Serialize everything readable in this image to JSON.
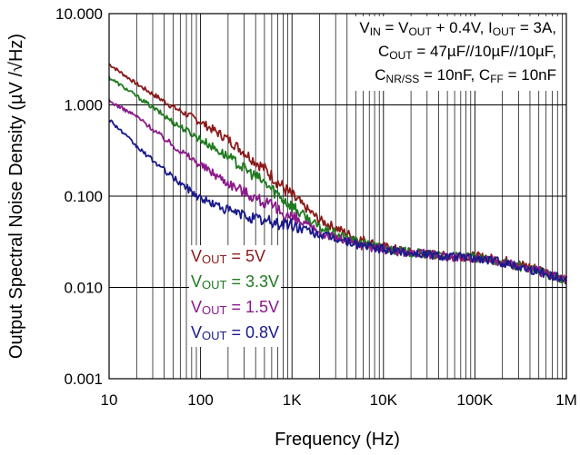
{
  "chart_data": {
    "type": "line",
    "ylabel": "Output Spectral Noise Density (µV /√Hz)",
    "xlabel": "Frequency (Hz)",
    "x_scale": "log",
    "y_scale": "log",
    "xlim": [
      10,
      1000000
    ],
    "ylim": [
      0.001,
      10
    ],
    "x_ticks": [
      10,
      100,
      1000,
      10000,
      100000,
      1000000
    ],
    "x_tick_labels": [
      "10",
      "100",
      "1K",
      "10K",
      "100K",
      "1M"
    ],
    "y_ticks": [
      0.001,
      0.01,
      0.1,
      1,
      10
    ],
    "y_tick_labels": [
      "0.001",
      "0.010",
      "0.100",
      "1.000",
      "10.000"
    ],
    "grid": true,
    "conditions": {
      "line1": {
        "a": "V",
        "a_sub": "IN",
        "b": " = V",
        "b_sub": "OUT",
        "c": " + 0.4V, I",
        "c_sub": "OUT",
        "d": " = 3A,"
      },
      "line2": {
        "a": "C",
        "a_sub": "OUT",
        "b": " = 47µF//10µF//10µF,"
      },
      "line3": {
        "a": "C",
        "a_sub": "NR/SS",
        "b": " = 10nF, C",
        "b_sub": "FF",
        "c": " = 10nF"
      }
    },
    "series": [
      {
        "name": "VOUT = 5V",
        "label_main": "V",
        "label_sub": "OUT",
        "label_rest": " = 5V",
        "color": "#8B1A1A",
        "x": [
          10,
          20,
          50,
          100,
          200,
          500,
          1000,
          2000,
          5000,
          10000,
          20000,
          50000,
          100000,
          200000,
          500000,
          1000000
        ],
        "y": [
          2.8,
          1.7,
          0.95,
          0.65,
          0.42,
          0.2,
          0.1,
          0.055,
          0.035,
          0.028,
          0.024,
          0.022,
          0.022,
          0.02,
          0.016,
          0.012
        ]
      },
      {
        "name": "VOUT = 3.3V",
        "label_main": "V",
        "label_sub": "OUT",
        "label_rest": " = 3.3V",
        "color": "#1E7B1E",
        "x": [
          10,
          20,
          50,
          100,
          200,
          500,
          1000,
          2000,
          5000,
          10000,
          20000,
          50000,
          100000,
          200000,
          500000,
          1000000
        ],
        "y": [
          2.0,
          1.25,
          0.65,
          0.42,
          0.27,
          0.14,
          0.078,
          0.045,
          0.032,
          0.027,
          0.024,
          0.022,
          0.021,
          0.019,
          0.015,
          0.012
        ]
      },
      {
        "name": "VOUT = 1.5V",
        "label_main": "V",
        "label_sub": "OUT",
        "label_rest": " = 1.5V",
        "color": "#8B1A8B",
        "x": [
          10,
          20,
          50,
          100,
          200,
          500,
          1000,
          2000,
          5000,
          10000,
          20000,
          50000,
          100000,
          200000,
          500000,
          1000000
        ],
        "y": [
          1.1,
          0.75,
          0.36,
          0.22,
          0.14,
          0.085,
          0.058,
          0.04,
          0.03,
          0.026,
          0.024,
          0.022,
          0.021,
          0.019,
          0.015,
          0.012
        ]
      },
      {
        "name": "VOUT = 0.8V",
        "label_main": "V",
        "label_sub": "OUT",
        "label_rest": " = 0.8V",
        "color": "#1A1A8B",
        "x": [
          10,
          20,
          50,
          100,
          200,
          500,
          1000,
          2000,
          5000,
          10000,
          20000,
          50000,
          100000,
          200000,
          500000,
          1000000
        ],
        "y": [
          0.7,
          0.35,
          0.16,
          0.095,
          0.07,
          0.053,
          0.048,
          0.038,
          0.03,
          0.026,
          0.024,
          0.022,
          0.021,
          0.019,
          0.015,
          0.012
        ]
      }
    ]
  }
}
